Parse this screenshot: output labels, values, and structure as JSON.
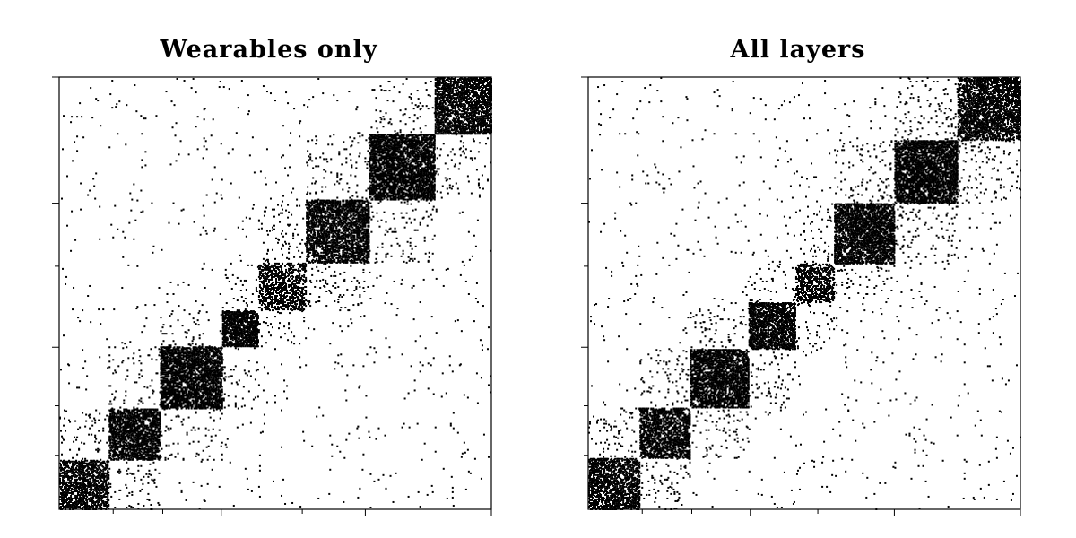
{
  "chart_data": [
    {
      "type": "heatmap",
      "title": "Wearables only",
      "xlabel": "",
      "ylabel": "",
      "matrix": "binary adjacency matrix (spy plot), nodes ordered by community",
      "n_nodes": 480,
      "grid": false,
      "tick_marks_only": true,
      "communities": [
        {
          "start": 0,
          "end": 55,
          "density": 0.35
        },
        {
          "start": 55,
          "end": 112,
          "density": 0.4
        },
        {
          "start": 112,
          "end": 181,
          "density": 0.45
        },
        {
          "start": 181,
          "end": 221,
          "density": 0.5
        },
        {
          "start": 221,
          "end": 274,
          "density": 0.25
        },
        {
          "start": 274,
          "end": 344,
          "density": 0.4
        },
        {
          "start": 344,
          "end": 417,
          "density": 0.45
        },
        {
          "start": 417,
          "end": 480,
          "density": 0.4
        }
      ],
      "x_ticks": [
        60,
        115,
        180,
        270,
        340,
        480
      ],
      "y_ticks": [
        60,
        115,
        180,
        270,
        340,
        480
      ],
      "x_major_ticks": [
        180,
        340,
        480
      ],
      "y_major_ticks": [
        180,
        340,
        480
      ],
      "mark_color": "#000000"
    },
    {
      "type": "heatmap",
      "title": "All layers",
      "xlabel": "",
      "ylabel": "",
      "matrix": "binary adjacency matrix (spy plot), nodes ordered by community",
      "n_nodes": 480,
      "grid": false,
      "tick_marks_only": true,
      "communities": [
        {
          "start": 0,
          "end": 57,
          "density": 0.35
        },
        {
          "start": 57,
          "end": 113,
          "density": 0.4
        },
        {
          "start": 113,
          "end": 178,
          "density": 0.45
        },
        {
          "start": 178,
          "end": 230,
          "density": 0.45
        },
        {
          "start": 230,
          "end": 273,
          "density": 0.3
        },
        {
          "start": 273,
          "end": 340,
          "density": 0.45
        },
        {
          "start": 340,
          "end": 410,
          "density": 0.45
        },
        {
          "start": 410,
          "end": 480,
          "density": 0.4
        }
      ],
      "x_ticks": [
        60,
        115,
        180,
        255,
        340,
        480
      ],
      "y_ticks": [
        60,
        115,
        180,
        270,
        340,
        480
      ],
      "x_major_ticks": [
        180,
        340,
        480
      ],
      "y_major_ticks": [
        180,
        340,
        480
      ],
      "mark_color": "#000000"
    }
  ]
}
